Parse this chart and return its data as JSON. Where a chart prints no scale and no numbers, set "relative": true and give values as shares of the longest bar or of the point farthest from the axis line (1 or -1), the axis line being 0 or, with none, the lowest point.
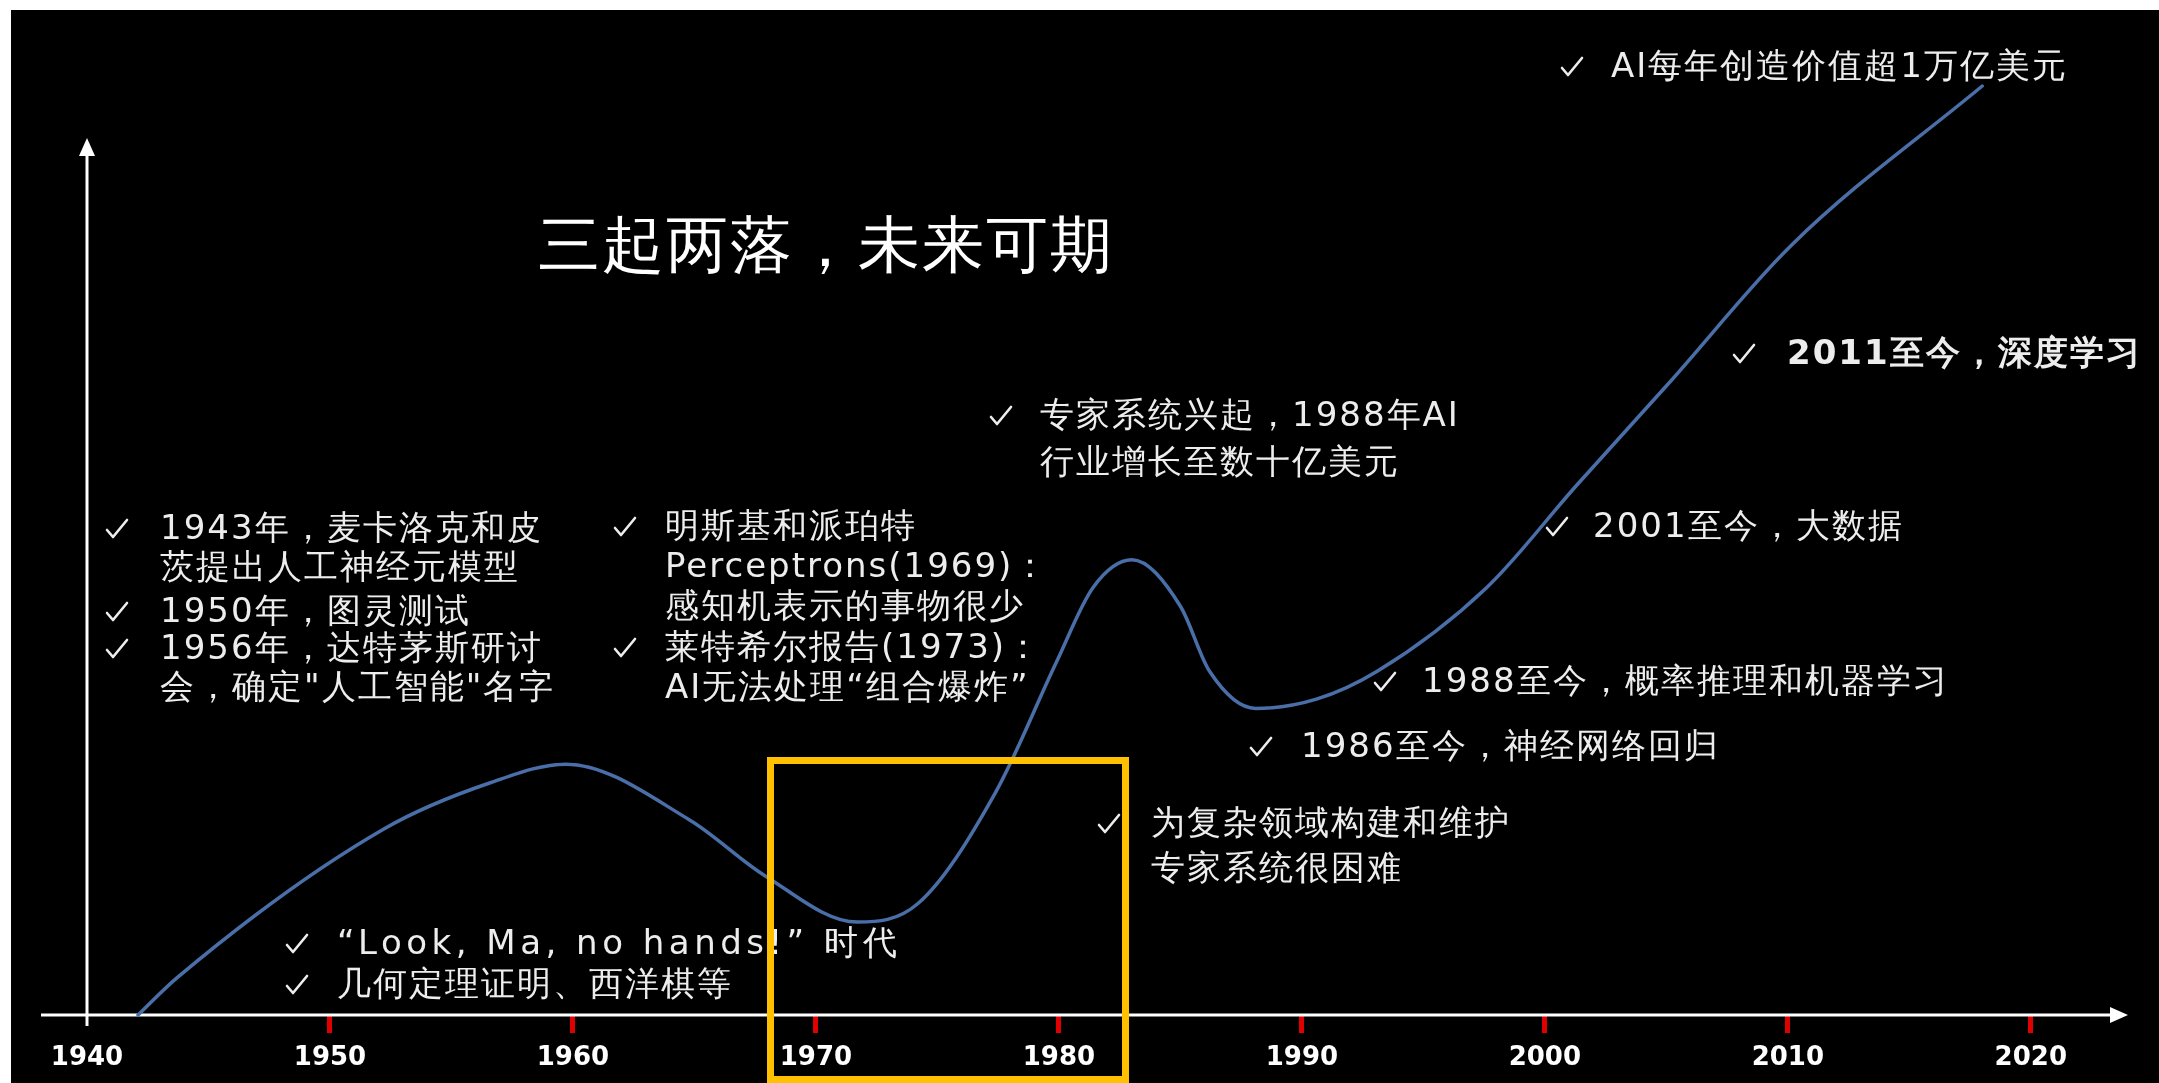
{
  "chart_data": {
    "type": "line",
    "title": "三起两落，未来可期",
    "relative": true,
    "color": "#4a6fa8",
    "marker": "none",
    "x": [
      1942.1,
      1943.7,
      1952.2,
      1956.6,
      1959.7,
      1964.8,
      1967.9,
      1971.7,
      1974.2,
      1977.4,
      1979.9,
      1981.4,
      1983,
      1985,
      1986.2,
      1988.1,
      1990.6,
      1993.1,
      1997.6,
      2001.3,
      2005.1,
      2010.2,
      2018
    ],
    "values": [
      0,
      0.04,
      0.2,
      0.25,
      0.27,
      0.21,
      0.15,
      0.1,
      0.12,
      0.24,
      0.38,
      0.46,
      0.49,
      0.44,
      0.37,
      0.33,
      0.34,
      0.37,
      0.46,
      0.57,
      0.68,
      0.83,
      1
    ],
    "xlim": [
      1940,
      2024
    ],
    "xticks": [
      1940,
      1950,
      1960,
      1970,
      1980,
      1990,
      2000,
      2010,
      2020
    ],
    "annotations": [
      "AI每年创造价值超1万亿美元",
      "2011至今，深度学习",
      "专家系统兴起，1988年AI行业增长至数十亿美元",
      "1943年，麦卡洛克和皮茨提出人工神经元模型",
      "明斯基和派珀特Perceptrons(1969)：感知机表示的事物很少",
      "2001至今，大数据",
      "1950年，图灵测试",
      "1956年，达特茅斯研讨会，确定\"人工智能\"名字",
      "莱特希尔报告(1973)：AI无法处理“组合爆炸”",
      "1988至今，概率推理和机器学习",
      "1986至今，神经网络回归",
      "为复杂领域构建和维护专家系统很困难",
      "“Look, Ma, no hands!” 时代",
      "几何定理证明、西洋棋等"
    ]
  }
}
